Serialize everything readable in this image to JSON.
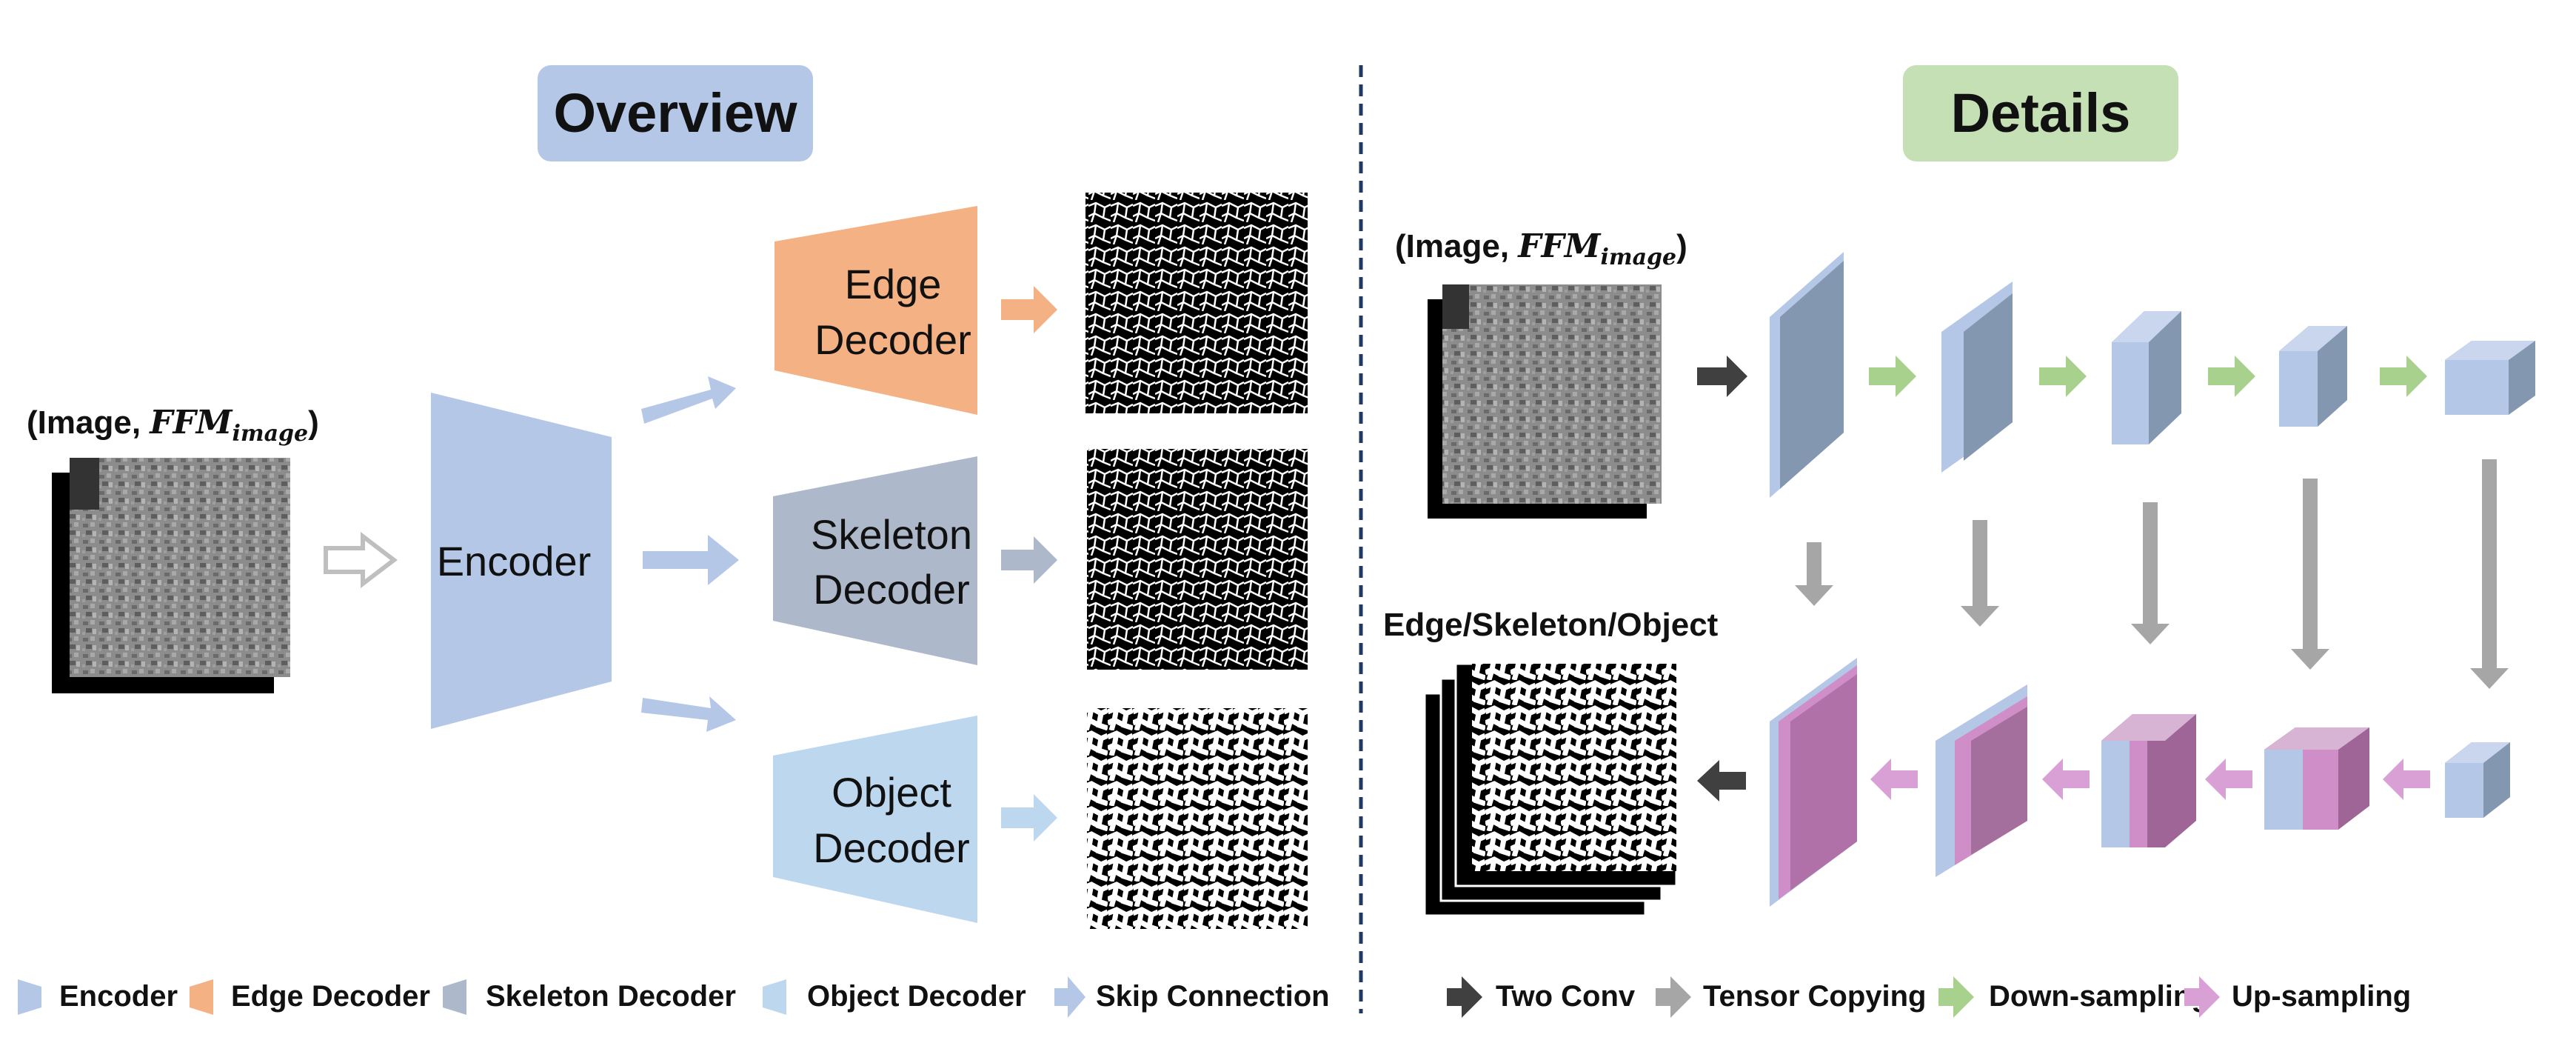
{
  "overview": {
    "title": "Overview",
    "input_label": {
      "open": "(Image, ",
      "math": "FFM",
      "sub": "image",
      "close": ")"
    },
    "encoder_label": "Encoder",
    "edge_decoder_label": [
      "Edge",
      "Decoder"
    ],
    "skeleton_decoder_label": [
      "Skeleton",
      "Decoder"
    ],
    "object_decoder_label": [
      "Object",
      "Decoder"
    ]
  },
  "details": {
    "title": "Details",
    "input_label": {
      "open": "(Image, ",
      "math": "FFM",
      "sub": "image",
      "close": ")"
    },
    "output_label": "Edge/Skeleton/Object"
  },
  "legend_left": [
    {
      "label": "Encoder",
      "color": "#b4c7e7",
      "icon": "encoder-swatch"
    },
    {
      "label": "Edge Decoder",
      "color": "#f4b183",
      "icon": "edge-decoder-swatch"
    },
    {
      "label": "Skeleton Decoder",
      "color": "#adb9ca",
      "icon": "skeleton-decoder-swatch"
    },
    {
      "label": "Object Decoder",
      "color": "#bdd7ee",
      "icon": "object-decoder-swatch"
    },
    {
      "label": "Skip Connection",
      "color": "#b4c7e7",
      "icon": "skip-connection-arrow"
    }
  ],
  "legend_right": [
    {
      "label": "Two Conv",
      "color": "#404040",
      "icon": "two-conv-arrow"
    },
    {
      "label": "Tensor Copying",
      "color": "#a6a6a6",
      "icon": "tensor-copying-arrow"
    },
    {
      "label": "Down-sampling",
      "color": "#a9d18e",
      "icon": "down-sampling-arrow"
    },
    {
      "label": "Up-sampling",
      "color": "#d9a0d6",
      "icon": "up-sampling-arrow"
    }
  ],
  "colors": {
    "overview_badge": "#b4c7e7",
    "details_badge": "#c5e0b4",
    "divider": "#1f3864",
    "up_block": "#b071a8"
  }
}
